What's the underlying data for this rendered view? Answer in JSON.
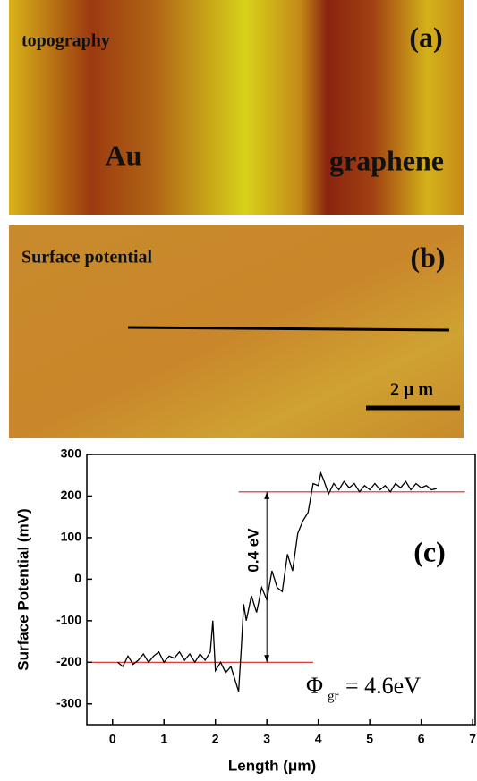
{
  "panels": [
    {
      "label": "(a)",
      "title": "topography",
      "annotations": [
        "Au",
        "graphene"
      ]
    },
    {
      "label": "(b)",
      "title": "Surface potential",
      "scale_bar": "2 μ m"
    }
  ],
  "chart_data": {
    "type": "line",
    "label": "(c)",
    "x_label": "Length (μm)",
    "y_label": "Surface Potential (mV)",
    "xlim": [
      -0.5,
      7.05
    ],
    "ylim": [
      -350,
      300
    ],
    "xticks": [
      0,
      1,
      2,
      3,
      4,
      5,
      6,
      7
    ],
    "yticks": [
      -300,
      -200,
      -100,
      0,
      100,
      200,
      300
    ],
    "x": [
      0.1,
      0.2,
      0.3,
      0.4,
      0.5,
      0.6,
      0.7,
      0.8,
      0.9,
      1.0,
      1.1,
      1.2,
      1.3,
      1.4,
      1.5,
      1.6,
      1.7,
      1.8,
      1.9,
      1.95,
      2.0,
      2.1,
      2.2,
      2.3,
      2.4,
      2.45,
      2.5,
      2.55,
      2.6,
      2.7,
      2.8,
      2.9,
      3.0,
      3.1,
      3.2,
      3.3,
      3.4,
      3.5,
      3.6,
      3.7,
      3.8,
      3.9,
      4.0,
      4.05,
      4.1,
      4.2,
      4.3,
      4.4,
      4.5,
      4.6,
      4.7,
      4.8,
      4.9,
      5.0,
      5.1,
      5.2,
      5.3,
      5.4,
      5.5,
      5.6,
      5.7,
      5.8,
      5.9,
      6.0,
      6.1,
      6.2,
      6.3
    ],
    "series": [
      {
        "color": "#000000",
        "values": [
          -200,
          -210,
          -185,
          -205,
          -195,
          -180,
          -200,
          -185,
          -175,
          -200,
          -185,
          -190,
          -175,
          -195,
          -180,
          -200,
          -180,
          -195,
          -175,
          -100,
          -220,
          -200,
          -225,
          -210,
          -250,
          -270,
          -170,
          -60,
          -100,
          -40,
          -80,
          -20,
          -50,
          20,
          -20,
          -30,
          60,
          20,
          110,
          140,
          160,
          230,
          225,
          255,
          240,
          205,
          230,
          215,
          235,
          220,
          230,
          210,
          225,
          215,
          230,
          215,
          225,
          210,
          230,
          220,
          235,
          215,
          230,
          220,
          225,
          215,
          218
        ]
      }
    ],
    "reference_lines": [
      {
        "y": -200,
        "x": [
          -0.4,
          3.9
        ],
        "color": "#e02020"
      },
      {
        "y": 210,
        "x": [
          2.45,
          6.85
        ],
        "color": "#e02020"
      }
    ],
    "arrow": {
      "x": 3,
      "y": [
        -200,
        210
      ],
      "label": "0.4 eV"
    },
    "formula": {
      "symbol": "Φ",
      "subscript": "gr",
      "text": "= 4.6eV"
    }
  }
}
